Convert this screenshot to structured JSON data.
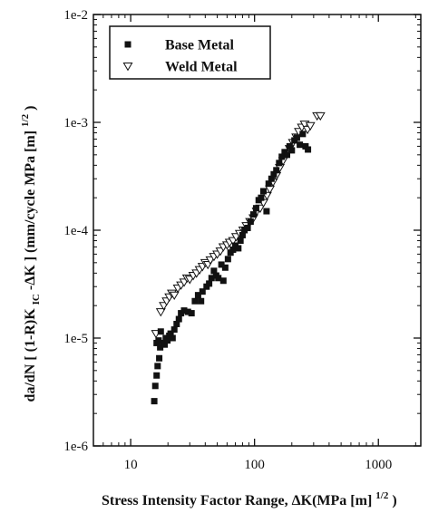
{
  "chart_data": {
    "type": "scatter",
    "xlabel": "Stress Intensity Factor Range, ΔK(MPa [m]1/2)",
    "ylabel": "da/dN [ (1-R)KIC-ΔK ] (mm/cycle MPa [m]1/2)",
    "xscale": "log",
    "yscale": "log",
    "xlim": [
      5,
      2200
    ],
    "ylim": [
      1e-06,
      0.01
    ],
    "xticks": [
      {
        "value": 10,
        "label": "10"
      },
      {
        "value": 100,
        "label": "100"
      },
      {
        "value": 1000,
        "label": "1000"
      }
    ],
    "yticks": [
      {
        "value": 1e-06,
        "label": "1e-6"
      },
      {
        "value": 1e-05,
        "label": "1e-5"
      },
      {
        "value": 0.0001,
        "label": "1e-4"
      },
      {
        "value": 0.001,
        "label": "1e-3"
      },
      {
        "value": 0.01,
        "label": "1e-2"
      }
    ],
    "legend": {
      "placement": "top-left"
    },
    "grid": false,
    "series": [
      {
        "name": "Base Metal",
        "marker": "filled-square",
        "color": "#111111",
        "points": [
          [
            15.5,
            2.6e-06
          ],
          [
            15.8,
            3.6e-06
          ],
          [
            16.2,
            4.5e-06
          ],
          [
            16.5,
            5.5e-06
          ],
          [
            17,
            6.5e-06
          ],
          [
            16.2,
            9e-06
          ],
          [
            16.8,
            9.5e-06
          ],
          [
            17.3,
            8.2e-06
          ],
          [
            17.5,
            1.15e-05
          ],
          [
            18.2,
            9e-06
          ],
          [
            18.8,
            8.7e-06
          ],
          [
            19.2,
            1e-05
          ],
          [
            19.8,
            9.5e-06
          ],
          [
            20.5,
            1.05e-05
          ],
          [
            21,
            1.1e-05
          ],
          [
            21.8,
            1e-05
          ],
          [
            22.5,
            1.2e-05
          ],
          [
            23.5,
            1.35e-05
          ],
          [
            24.5,
            1.5e-05
          ],
          [
            25.5,
            1.7e-05
          ],
          [
            27,
            1.8e-05
          ],
          [
            29,
            1.75e-05
          ],
          [
            31,
            1.7e-05
          ],
          [
            33,
            2.2e-05
          ],
          [
            35,
            2.5e-05
          ],
          [
            37,
            2.2e-05
          ],
          [
            38,
            2.7e-05
          ],
          [
            41,
            3e-05
          ],
          [
            43,
            3.2e-05
          ],
          [
            45,
            3.6e-05
          ],
          [
            47,
            4.2e-05
          ],
          [
            49,
            3.8e-05
          ],
          [
            51,
            3.6e-05
          ],
          [
            54,
            4.8e-05
          ],
          [
            56,
            3.4e-05
          ],
          [
            58,
            4.5e-05
          ],
          [
            61,
            5.4e-05
          ],
          [
            64,
            6.2e-05
          ],
          [
            67,
            6.6e-05
          ],
          [
            70,
            7.2e-05
          ],
          [
            74,
            6.8e-05
          ],
          [
            77,
            8e-05
          ],
          [
            80,
            9e-05
          ],
          [
            83,
            0.0001
          ],
          [
            88,
            0.000105
          ],
          [
            93,
            0.00012
          ],
          [
            98,
            0.00014
          ],
          [
            103,
            0.00016
          ],
          [
            108,
            0.00019
          ],
          [
            113,
            0.0002
          ],
          [
            118,
            0.00023
          ],
          [
            125,
            0.00015
          ],
          [
            130,
            0.00027
          ],
          [
            137,
            0.0003
          ],
          [
            143,
            0.00033
          ],
          [
            150,
            0.00036
          ],
          [
            158,
            0.00042
          ],
          [
            166,
            0.00048
          ],
          [
            175,
            0.00053
          ],
          [
            183,
            0.0005
          ],
          [
            192,
            0.0006
          ],
          [
            200,
            0.00055
          ],
          [
            210,
            0.00068
          ],
          [
            220,
            0.00072
          ],
          [
            232,
            0.00062
          ],
          [
            245,
            0.00078
          ],
          [
            258,
            0.0006
          ],
          [
            270,
            0.00056
          ]
        ]
      },
      {
        "name": "Weld Metal",
        "marker": "open-triangle-down",
        "color": "#111111",
        "points": [
          [
            16,
            1.1e-05
          ],
          [
            17.5,
            1.75e-05
          ],
          [
            18.5,
            2e-05
          ],
          [
            19.5,
            2.2e-05
          ],
          [
            20.5,
            2.4e-05
          ],
          [
            21.5,
            2.6e-05
          ],
          [
            22.5,
            2.5e-05
          ],
          [
            24,
            2.9e-05
          ],
          [
            25.5,
            3.1e-05
          ],
          [
            27,
            3.3e-05
          ],
          [
            28.5,
            3.6e-05
          ],
          [
            30,
            3.5e-05
          ],
          [
            32,
            3.8e-05
          ],
          [
            34,
            4e-05
          ],
          [
            36,
            4.3e-05
          ],
          [
            38,
            4.6e-05
          ],
          [
            40,
            5e-05
          ],
          [
            42,
            4.8e-05
          ],
          [
            44,
            5.3e-05
          ],
          [
            47,
            5.7e-05
          ],
          [
            50,
            6e-05
          ],
          [
            53,
            6.4e-05
          ],
          [
            56,
            7e-05
          ],
          [
            60,
            7.3e-05
          ],
          [
            63,
            7.7e-05
          ],
          [
            67,
            8e-05
          ],
          [
            71,
            8.7e-05
          ],
          [
            76,
            9.3e-05
          ],
          [
            81,
            0.0001
          ],
          [
            86,
            0.00011
          ],
          [
            92,
            0.00012
          ],
          [
            98,
            0.00013
          ],
          [
            104,
            0.00015
          ],
          [
            111,
            0.00016
          ],
          [
            118,
            0.00018
          ],
          [
            126,
            0.00021
          ],
          [
            133,
            0.00024
          ],
          [
            141,
            0.00028
          ],
          [
            150,
            0.00032
          ],
          [
            160,
            0.00038
          ],
          [
            170,
            0.00044
          ],
          [
            181,
            0.00051
          ],
          [
            192,
            0.00057
          ],
          [
            204,
            0.00065
          ],
          [
            217,
            0.00073
          ],
          [
            228,
            0.00082
          ],
          [
            241,
            0.0009
          ],
          [
            254,
            0.00096
          ],
          [
            268,
            0.00086
          ],
          [
            282,
            0.00093
          ],
          [
            320,
            0.00115
          ],
          [
            340,
            0.00115
          ]
        ]
      }
    ]
  }
}
